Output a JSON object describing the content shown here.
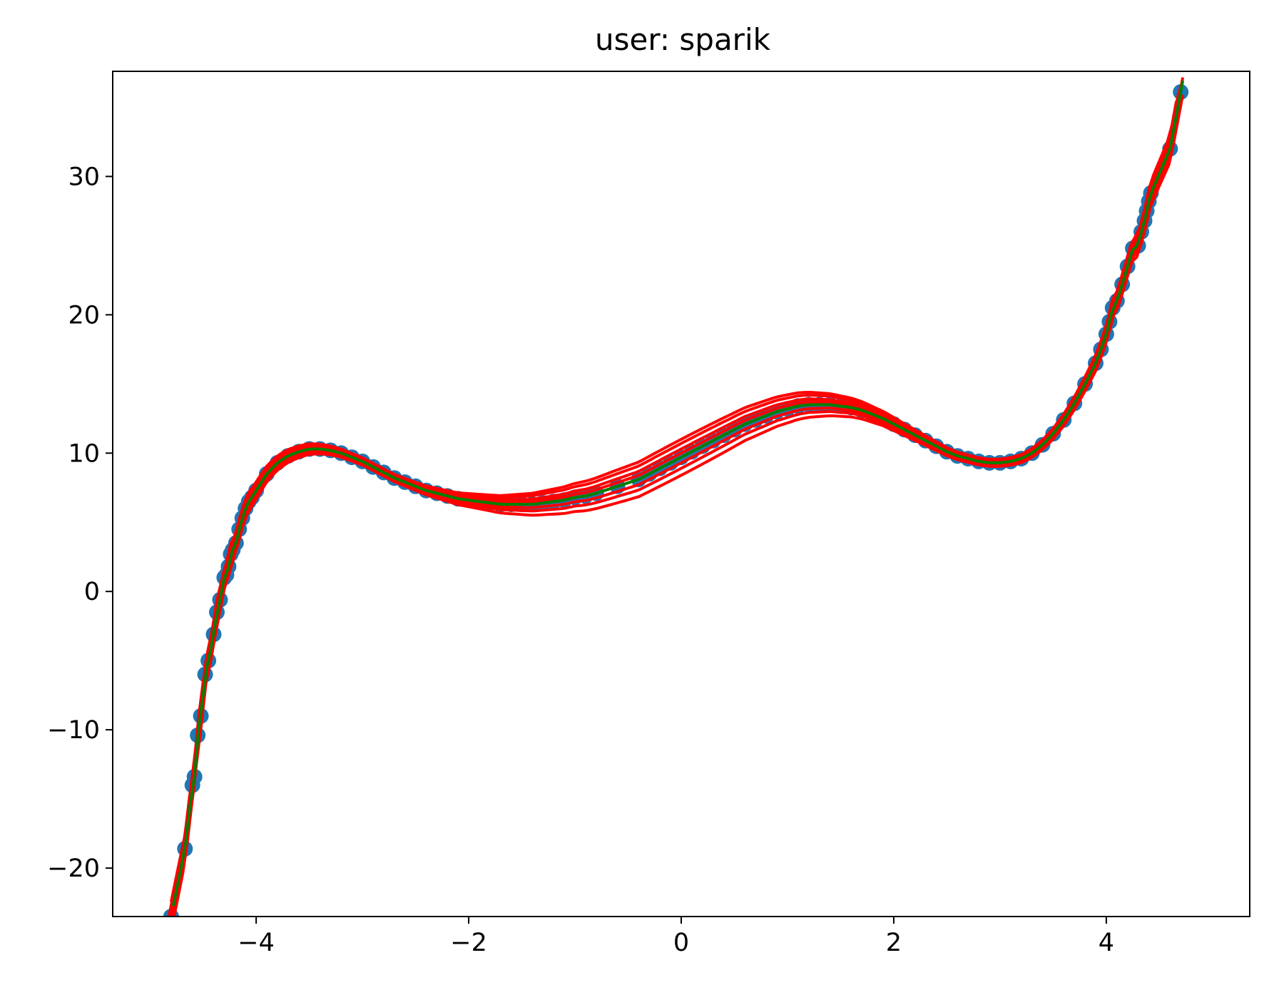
{
  "chart_data": {
    "type": "scatter",
    "title": "user: sparik",
    "xlabel": "",
    "ylabel": "",
    "xlim": [
      -5.35,
      5.35
    ],
    "ylim": [
      -23.5,
      37.6
    ],
    "xticks": [
      -4,
      -2,
      0,
      2,
      4
    ],
    "yticks": [
      -20,
      -10,
      0,
      10,
      20,
      30
    ],
    "xtick_labels": [
      "−4",
      "−2",
      "0",
      "2",
      "4"
    ],
    "ytick_labels": [
      "−20",
      "−10",
      "0",
      "10",
      "20",
      "30"
    ],
    "grid": false,
    "legend": "none",
    "colors": {
      "points": "#1f77b4",
      "fit_lines": "#ff0000",
      "mean_line": "#008000"
    },
    "series": [
      {
        "type": "scatter",
        "color": "#1f77b4",
        "x": [
          -4.8,
          -4.67,
          -4.6,
          -4.58,
          -4.55,
          -4.52,
          -4.48,
          -4.45,
          -4.4,
          -4.37,
          -4.34,
          -4.3,
          -4.28,
          -4.26,
          -4.24,
          -4.22,
          -4.19,
          -4.16,
          -4.13,
          -4.1,
          -4.07,
          -4.04,
          -4.0,
          -3.9,
          -3.8,
          -3.7,
          -3.6,
          -3.5,
          -3.4,
          -3.3,
          -3.2,
          -3.1,
          -3.0,
          -2.9,
          -2.8,
          -2.7,
          -2.6,
          -2.5,
          -2.4,
          -2.3,
          -2.2,
          -2.1,
          -2.0,
          -1.9,
          -1.8,
          -1.7,
          -1.6,
          -1.5,
          -1.4,
          -1.3,
          -1.2,
          -1.1,
          -1.0,
          -0.9,
          -0.8,
          -0.6,
          -0.4,
          -0.3,
          -0.2,
          -0.1,
          0.0,
          0.1,
          0.2,
          0.3,
          0.4,
          0.5,
          0.6,
          0.7,
          0.8,
          0.9,
          1.0,
          1.1,
          1.2,
          1.3,
          1.4,
          1.5,
          1.6,
          1.7,
          1.8,
          1.9,
          2.0,
          2.1,
          2.2,
          2.3,
          2.4,
          2.5,
          2.6,
          2.7,
          2.8,
          2.9,
          3.0,
          3.1,
          3.2,
          3.3,
          3.4,
          3.5,
          3.6,
          3.7,
          3.8,
          3.9,
          3.95,
          4.0,
          4.03,
          4.06,
          4.1,
          4.15,
          4.2,
          4.25,
          4.3,
          4.33,
          4.36,
          4.38,
          4.4,
          4.42,
          4.6,
          4.7
        ],
        "y": [
          -23.5,
          -18.6,
          -14.0,
          -13.4,
          -10.4,
          -9.0,
          -6.0,
          -5.0,
          -3.1,
          -1.5,
          -0.6,
          1.0,
          1.2,
          1.8,
          2.7,
          3.0,
          3.5,
          4.5,
          5.3,
          6.0,
          6.5,
          6.8,
          7.3,
          8.5,
          9.3,
          9.8,
          10.1,
          10.3,
          10.3,
          10.2,
          10.0,
          9.7,
          9.4,
          9.0,
          8.6,
          8.2,
          7.9,
          7.6,
          7.3,
          7.1,
          6.9,
          6.7,
          6.6,
          6.5,
          6.4,
          6.3,
          6.3,
          6.3,
          6.3,
          6.4,
          6.5,
          6.6,
          6.8,
          6.9,
          7.1,
          7.6,
          8.1,
          8.5,
          8.9,
          9.3,
          9.7,
          10.1,
          10.5,
          10.9,
          11.3,
          11.7,
          12.1,
          12.4,
          12.7,
          13.0,
          13.2,
          13.4,
          13.5,
          13.5,
          13.5,
          13.4,
          13.3,
          13.1,
          12.8,
          12.5,
          12.1,
          11.7,
          11.3,
          10.9,
          10.5,
          10.1,
          9.8,
          9.6,
          9.4,
          9.3,
          9.3,
          9.4,
          9.6,
          10.0,
          10.6,
          11.4,
          12.4,
          13.6,
          15.0,
          16.5,
          17.5,
          18.6,
          19.5,
          20.5,
          21.0,
          22.2,
          23.5,
          24.8,
          25.0,
          26.0,
          26.8,
          27.5,
          28.2,
          28.8,
          32.0,
          36.1
        ]
      }
    ],
    "red_fit_offsets": [
      -1.3,
      -0.8,
      -0.4,
      0.0,
      0.3,
      0.6,
      1.0,
      1.3
    ],
    "mean_fit": "green"
  }
}
